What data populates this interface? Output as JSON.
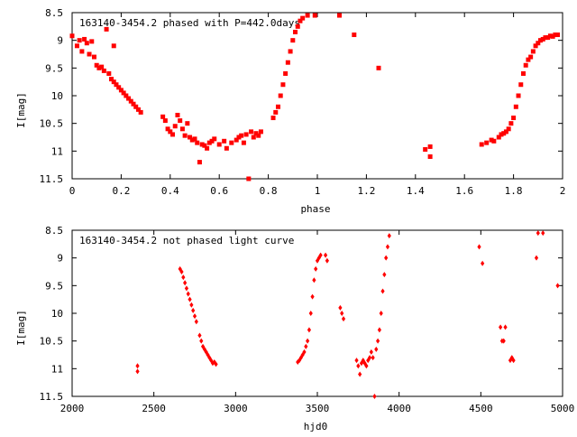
{
  "chart_data": [
    {
      "type": "scatter",
      "title": "163140-3454.2 phased with P=442.0days",
      "xlabel": "phase",
      "ylabel": "I[mag]",
      "xlim": [
        0,
        2
      ],
      "ylim": [
        11.5,
        8.5
      ],
      "y_inverted": true,
      "xticks": [
        "0",
        "0.2",
        "0.4",
        "0.6",
        "0.8",
        "1",
        "1.2",
        "1.4",
        "1.6",
        "1.8",
        "2"
      ],
      "xtick_values": [
        0,
        0.2,
        0.4,
        0.6,
        0.8,
        1.0,
        1.2,
        1.4,
        1.6,
        1.8,
        2.0
      ],
      "yticks": [
        "8.5",
        "9",
        "9.5",
        "10",
        "10.5",
        "11",
        "11.5"
      ],
      "ytick_values": [
        8.5,
        9,
        9.5,
        10,
        10.5,
        11,
        11.5
      ],
      "marker_color": "#ff0000",
      "points": [
        [
          0.0,
          8.92
        ],
        [
          0.02,
          9.1
        ],
        [
          0.03,
          9.0
        ],
        [
          0.04,
          9.2
        ],
        [
          0.05,
          8.98
        ],
        [
          0.06,
          9.05
        ],
        [
          0.07,
          9.25
        ],
        [
          0.08,
          9.02
        ],
        [
          0.09,
          9.3
        ],
        [
          0.1,
          9.45
        ],
        [
          0.11,
          9.5
        ],
        [
          0.12,
          9.48
        ],
        [
          0.13,
          9.55
        ],
        [
          0.14,
          8.8
        ],
        [
          0.15,
          9.6
        ],
        [
          0.16,
          9.7
        ],
        [
          0.17,
          9.75
        ],
        [
          0.17,
          9.1
        ],
        [
          0.18,
          9.8
        ],
        [
          0.19,
          9.85
        ],
        [
          0.2,
          9.9
        ],
        [
          0.21,
          9.95
        ],
        [
          0.22,
          10.0
        ],
        [
          0.23,
          10.05
        ],
        [
          0.24,
          10.1
        ],
        [
          0.25,
          10.15
        ],
        [
          0.26,
          10.2
        ],
        [
          0.27,
          10.25
        ],
        [
          0.28,
          10.3
        ],
        [
          0.37,
          10.38
        ],
        [
          0.38,
          10.45
        ],
        [
          0.39,
          10.6
        ],
        [
          0.4,
          10.65
        ],
        [
          0.41,
          10.7
        ],
        [
          0.42,
          10.55
        ],
        [
          0.43,
          10.35
        ],
        [
          0.44,
          10.45
        ],
        [
          0.45,
          10.6
        ],
        [
          0.46,
          10.72
        ],
        [
          0.47,
          10.5
        ],
        [
          0.48,
          10.75
        ],
        [
          0.49,
          10.8
        ],
        [
          0.5,
          10.78
        ],
        [
          0.51,
          10.85
        ],
        [
          0.52,
          11.2
        ],
        [
          0.53,
          10.88
        ],
        [
          0.54,
          10.9
        ],
        [
          0.55,
          10.95
        ],
        [
          0.56,
          10.85
        ],
        [
          0.57,
          10.82
        ],
        [
          0.58,
          10.78
        ],
        [
          0.6,
          10.88
        ],
        [
          0.62,
          10.82
        ],
        [
          0.63,
          10.95
        ],
        [
          0.65,
          10.85
        ],
        [
          0.67,
          10.8
        ],
        [
          0.68,
          10.75
        ],
        [
          0.69,
          10.72
        ],
        [
          0.7,
          10.85
        ],
        [
          0.71,
          10.7
        ],
        [
          0.72,
          11.5
        ],
        [
          0.73,
          10.65
        ],
        [
          0.74,
          10.75
        ],
        [
          0.75,
          10.68
        ],
        [
          0.76,
          10.72
        ],
        [
          0.77,
          10.65
        ],
        [
          0.82,
          10.4
        ],
        [
          0.83,
          10.3
        ],
        [
          0.84,
          10.2
        ],
        [
          0.85,
          10.0
        ],
        [
          0.86,
          9.8
        ],
        [
          0.87,
          9.6
        ],
        [
          0.88,
          9.4
        ],
        [
          0.89,
          9.2
        ],
        [
          0.9,
          9.0
        ],
        [
          0.91,
          8.85
        ],
        [
          0.92,
          8.75
        ],
        [
          0.93,
          8.65
        ],
        [
          0.94,
          8.6
        ],
        [
          0.96,
          8.55
        ],
        [
          0.99,
          8.55
        ],
        [
          1.09,
          8.55
        ],
        [
          1.15,
          8.9
        ],
        [
          1.25,
          9.5
        ],
        [
          1.44,
          10.97
        ],
        [
          1.46,
          10.92
        ],
        [
          1.46,
          11.1
        ],
        [
          1.67,
          10.88
        ],
        [
          1.69,
          10.85
        ],
        [
          1.71,
          10.8
        ],
        [
          1.72,
          10.82
        ],
        [
          1.74,
          10.75
        ],
        [
          1.75,
          10.7
        ],
        [
          1.76,
          10.68
        ],
        [
          1.77,
          10.65
        ],
        [
          1.78,
          10.6
        ],
        [
          1.79,
          10.5
        ],
        [
          1.8,
          10.4
        ],
        [
          1.81,
          10.2
        ],
        [
          1.82,
          10.0
        ],
        [
          1.83,
          9.8
        ],
        [
          1.84,
          9.6
        ],
        [
          1.85,
          9.45
        ],
        [
          1.86,
          9.35
        ],
        [
          1.87,
          9.3
        ],
        [
          1.88,
          9.2
        ],
        [
          1.89,
          9.1
        ],
        [
          1.9,
          9.05
        ],
        [
          1.91,
          9.0
        ],
        [
          1.92,
          8.98
        ],
        [
          1.93,
          8.95
        ],
        [
          1.94,
          8.95
        ],
        [
          1.95,
          8.92
        ],
        [
          1.96,
          8.93
        ],
        [
          1.97,
          8.9
        ],
        [
          1.98,
          8.9
        ]
      ]
    },
    {
      "type": "scatter",
      "title": "163140-3454.2 not phased light curve",
      "xlabel": "hjd0",
      "ylabel": "I[mag]",
      "xlim": [
        2000,
        5000
      ],
      "ylim": [
        11.5,
        8.5
      ],
      "y_inverted": true,
      "xticks": [
        "2000",
        "2500",
        "3000",
        "3500",
        "4000",
        "4500",
        "5000"
      ],
      "xtick_values": [
        2000,
        2500,
        3000,
        3500,
        4000,
        4500,
        5000
      ],
      "yticks": [
        "8.5",
        "9",
        "9.5",
        "10",
        "10.5",
        "11",
        "11.5"
      ],
      "ytick_values": [
        8.5,
        9,
        9.5,
        10,
        10.5,
        11,
        11.5
      ],
      "marker_color": "#ff0000",
      "points": [
        [
          2400,
          10.95
        ],
        [
          2400,
          11.05
        ],
        [
          2660,
          9.2
        ],
        [
          2670,
          9.25
        ],
        [
          2680,
          9.35
        ],
        [
          2690,
          9.45
        ],
        [
          2700,
          9.55
        ],
        [
          2710,
          9.65
        ],
        [
          2720,
          9.75
        ],
        [
          2730,
          9.85
        ],
        [
          2740,
          9.95
        ],
        [
          2750,
          10.05
        ],
        [
          2760,
          10.15
        ],
        [
          2780,
          10.4
        ],
        [
          2790,
          10.5
        ],
        [
          2800,
          10.6
        ],
        [
          2810,
          10.65
        ],
        [
          2820,
          10.7
        ],
        [
          2830,
          10.75
        ],
        [
          2840,
          10.8
        ],
        [
          2850,
          10.85
        ],
        [
          2860,
          10.9
        ],
        [
          2870,
          10.88
        ],
        [
          2880,
          10.92
        ],
        [
          3380,
          10.88
        ],
        [
          3390,
          10.85
        ],
        [
          3400,
          10.8
        ],
        [
          3410,
          10.75
        ],
        [
          3420,
          10.7
        ],
        [
          3430,
          10.6
        ],
        [
          3440,
          10.5
        ],
        [
          3450,
          10.3
        ],
        [
          3460,
          10.0
        ],
        [
          3470,
          9.7
        ],
        [
          3480,
          9.4
        ],
        [
          3490,
          9.2
        ],
        [
          3500,
          9.05
        ],
        [
          3510,
          9.0
        ],
        [
          3520,
          8.95
        ],
        [
          3550,
          8.95
        ],
        [
          3560,
          9.05
        ],
        [
          3640,
          9.9
        ],
        [
          3650,
          10.0
        ],
        [
          3660,
          10.1
        ],
        [
          3740,
          10.85
        ],
        [
          3750,
          10.95
        ],
        [
          3760,
          11.1
        ],
        [
          3770,
          10.9
        ],
        [
          3780,
          10.85
        ],
        [
          3790,
          10.9
        ],
        [
          3800,
          10.95
        ],
        [
          3810,
          10.85
        ],
        [
          3820,
          10.8
        ],
        [
          3830,
          10.7
        ],
        [
          3840,
          10.8
        ],
        [
          3850,
          11.5
        ],
        [
          3860,
          10.65
        ],
        [
          3870,
          10.5
        ],
        [
          3880,
          10.3
        ],
        [
          3890,
          10.0
        ],
        [
          3900,
          9.6
        ],
        [
          3910,
          9.3
        ],
        [
          3920,
          9.0
        ],
        [
          3930,
          8.8
        ],
        [
          3940,
          8.6
        ],
        [
          4490,
          8.8
        ],
        [
          4510,
          9.1
        ],
        [
          4620,
          10.25
        ],
        [
          4630,
          10.5
        ],
        [
          4640,
          10.5
        ],
        [
          4650,
          10.25
        ],
        [
          4680,
          10.85
        ],
        [
          4690,
          10.8
        ],
        [
          4700,
          10.85
        ],
        [
          4840,
          9.0
        ],
        [
          4850,
          8.55
        ],
        [
          4880,
          8.55
        ],
        [
          4970,
          9.5
        ]
      ]
    }
  ]
}
